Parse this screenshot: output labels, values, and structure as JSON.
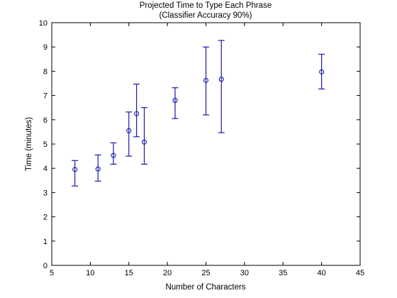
{
  "chart_data": {
    "type": "scatter",
    "title_line1": "Projected Time to Type Each Phrase",
    "title_line2": "(Classifier Accuracy 90%)",
    "xlabel": "Number of Characters",
    "ylabel": "Time (minutes)",
    "xlim": [
      5,
      45
    ],
    "ylim": [
      0,
      10
    ],
    "xticks": [
      5,
      10,
      15,
      20,
      25,
      30,
      35,
      40,
      45
    ],
    "yticks": [
      0,
      1,
      2,
      3,
      4,
      5,
      6,
      7,
      8,
      9,
      10
    ],
    "grid": false,
    "marker": "circle",
    "color": "#1a1aaa",
    "points": [
      {
        "x": 8,
        "y": 3.95,
        "lower": 3.27,
        "upper": 4.32
      },
      {
        "x": 11,
        "y": 3.97,
        "lower": 3.47,
        "upper": 4.55
      },
      {
        "x": 13,
        "y": 4.53,
        "lower": 4.17,
        "upper": 5.05
      },
      {
        "x": 15,
        "y": 5.55,
        "lower": 4.5,
        "upper": 6.32
      },
      {
        "x": 16,
        "y": 6.25,
        "lower": 5.3,
        "upper": 7.47
      },
      {
        "x": 17,
        "y": 5.08,
        "lower": 4.17,
        "upper": 6.5
      },
      {
        "x": 21,
        "y": 6.8,
        "lower": 6.05,
        "upper": 7.32
      },
      {
        "x": 25,
        "y": 7.62,
        "lower": 6.2,
        "upper": 9.0
      },
      {
        "x": 27,
        "y": 7.67,
        "lower": 5.47,
        "upper": 9.27
      },
      {
        "x": 40,
        "y": 7.97,
        "lower": 7.27,
        "upper": 8.7
      }
    ]
  }
}
